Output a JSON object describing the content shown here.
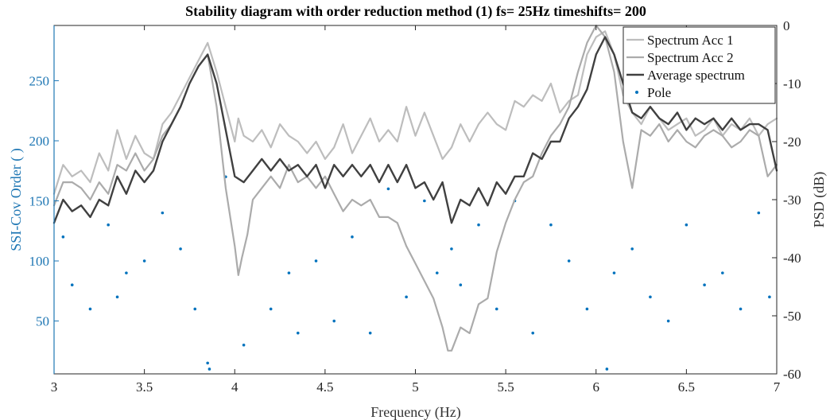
{
  "chart_data": {
    "type": "scatter",
    "title": "Stability diagram with order reduction method (1) fs= 25Hz timeshifts= 200",
    "xlabel": "Frequency (Hz)",
    "ylabel_left": "SSI-Cov Order ( )",
    "ylabel_right": "PSD (dB)",
    "xlim": [
      3,
      7
    ],
    "ylim_left": [
      6,
      296
    ],
    "ylim_right": [
      -60,
      0
    ],
    "x_ticks": [
      3,
      3.5,
      4,
      4.5,
      5,
      5.5,
      6,
      6.5,
      7
    ],
    "x_tick_labels": [
      "3",
      "3.5",
      "4",
      "4.5",
      "5",
      "5.5",
      "6",
      "6.5",
      "7"
    ],
    "y_left_ticks": [
      50,
      100,
      150,
      200,
      250
    ],
    "y_left_tick_labels": [
      "50",
      "100",
      "150",
      "200",
      "250"
    ],
    "y_right_ticks": [
      0,
      -10,
      -20,
      -30,
      -40,
      -50,
      -60
    ],
    "y_right_tick_labels": [
      "0",
      "-10",
      "-20",
      "-30",
      "-40",
      "-50",
      "-60"
    ],
    "grid": false,
    "legend_position": "top-right",
    "colors": {
      "pole": "#0072BD",
      "acc1": "#BDBDBD",
      "acc2": "#ABABAB",
      "average": "#404040",
      "left_axis": "#1f77b4",
      "right_axis": "#222222"
    },
    "series": [
      {
        "name": "Spectrum Acc 1",
        "axis": "right",
        "x": [
          3.0,
          3.05,
          3.1,
          3.15,
          3.2,
          3.25,
          3.3,
          3.35,
          3.4,
          3.45,
          3.5,
          3.55,
          3.6,
          3.65,
          3.7,
          3.75,
          3.8,
          3.85,
          3.9,
          3.95,
          4.0,
          4.02,
          4.05,
          4.1,
          4.15,
          4.2,
          4.25,
          4.3,
          4.35,
          4.4,
          4.45,
          4.5,
          4.55,
          4.6,
          4.65,
          4.7,
          4.75,
          4.8,
          4.85,
          4.9,
          4.95,
          5.0,
          5.05,
          5.1,
          5.15,
          5.2,
          5.25,
          5.3,
          5.35,
          5.4,
          5.45,
          5.5,
          5.55,
          5.6,
          5.65,
          5.7,
          5.75,
          5.8,
          5.85,
          5.9,
          5.95,
          6.0,
          6.05,
          6.1,
          6.15,
          6.2,
          6.25,
          6.3,
          6.35,
          6.4,
          6.45,
          6.5,
          6.55,
          6.6,
          6.65,
          6.7,
          6.75,
          6.8,
          6.85,
          6.9,
          6.95,
          7.0
        ],
        "y": [
          -29,
          -24,
          -26,
          -25,
          -27,
          -22,
          -25,
          -18,
          -23,
          -19,
          -22,
          -23,
          -17,
          -15,
          -12,
          -9,
          -6,
          -3,
          -8,
          -14,
          -20,
          -16,
          -19,
          -20,
          -18,
          -21,
          -17,
          -19,
          -20,
          -22,
          -20,
          -23,
          -21,
          -17,
          -22,
          -19,
          -16,
          -20,
          -18,
          -20,
          -14,
          -19,
          -15,
          -19,
          -23,
          -21,
          -17,
          -20,
          -17,
          -15,
          -17,
          -18,
          -13,
          -14,
          -12,
          -13,
          -10,
          -15,
          -13,
          -12,
          -5,
          -2,
          -1,
          -5,
          -12,
          -15,
          -17,
          -14,
          -16,
          -18,
          -17,
          -16,
          -19,
          -18,
          -16,
          -19,
          -17,
          -18,
          -16,
          -19,
          -17,
          -16
        ]
      },
      {
        "name": "Spectrum Acc 2",
        "axis": "right",
        "x": [
          3.0,
          3.05,
          3.1,
          3.15,
          3.2,
          3.25,
          3.3,
          3.35,
          3.4,
          3.45,
          3.5,
          3.55,
          3.6,
          3.65,
          3.7,
          3.75,
          3.8,
          3.85,
          3.9,
          3.95,
          4.0,
          4.02,
          4.04,
          4.07,
          4.1,
          4.15,
          4.2,
          4.25,
          4.3,
          4.35,
          4.4,
          4.45,
          4.5,
          4.55,
          4.6,
          4.65,
          4.7,
          4.75,
          4.8,
          4.85,
          4.9,
          4.95,
          5.0,
          5.05,
          5.1,
          5.15,
          5.18,
          5.2,
          5.25,
          5.3,
          5.35,
          5.4,
          5.45,
          5.5,
          5.55,
          5.6,
          5.65,
          5.7,
          5.75,
          5.8,
          5.85,
          5.9,
          5.95,
          6.0,
          6.05,
          6.1,
          6.15,
          6.2,
          6.25,
          6.3,
          6.35,
          6.4,
          6.45,
          6.5,
          6.55,
          6.6,
          6.65,
          6.7,
          6.75,
          6.8,
          6.85,
          6.9,
          6.95,
          7.0
        ],
        "y": [
          -31,
          -27,
          -27,
          -28,
          -30,
          -27,
          -29,
          -24,
          -25,
          -22,
          -25,
          -23,
          -19,
          -17,
          -14,
          -10,
          -7,
          -5,
          -14,
          -28,
          -38,
          -43,
          -40,
          -36,
          -30,
          -28,
          -26,
          -28,
          -24,
          -27,
          -26,
          -28,
          -26,
          -29,
          -32,
          -30,
          -31,
          -30,
          -33,
          -33,
          -34,
          -38,
          -41,
          -44,
          -47,
          -52,
          -56,
          -56,
          -52,
          -53,
          -48,
          -47,
          -39,
          -34,
          -30,
          -27,
          -26,
          -22,
          -19,
          -17,
          -14,
          -8,
          -3,
          0,
          -2,
          -8,
          -20,
          -28,
          -18,
          -19,
          -17,
          -20,
          -18,
          -20,
          -21,
          -19,
          -18,
          -19,
          -21,
          -20,
          -18,
          -19,
          -26,
          -24
        ]
      },
      {
        "name": "Average spectrum",
        "axis": "right",
        "x": [
          3.0,
          3.05,
          3.1,
          3.15,
          3.2,
          3.25,
          3.3,
          3.35,
          3.4,
          3.45,
          3.5,
          3.55,
          3.6,
          3.65,
          3.7,
          3.75,
          3.8,
          3.85,
          3.9,
          3.95,
          4.0,
          4.05,
          4.1,
          4.15,
          4.2,
          4.25,
          4.3,
          4.35,
          4.4,
          4.45,
          4.5,
          4.55,
          4.6,
          4.65,
          4.7,
          4.75,
          4.8,
          4.85,
          4.9,
          4.95,
          5.0,
          5.05,
          5.1,
          5.15,
          5.2,
          5.25,
          5.3,
          5.35,
          5.4,
          5.45,
          5.5,
          5.55,
          5.6,
          5.65,
          5.7,
          5.75,
          5.8,
          5.85,
          5.9,
          5.95,
          6.0,
          6.05,
          6.1,
          6.15,
          6.2,
          6.25,
          6.3,
          6.35,
          6.4,
          6.45,
          6.5,
          6.55,
          6.6,
          6.65,
          6.7,
          6.75,
          6.8,
          6.85,
          6.9,
          6.95,
          7.0
        ],
        "y": [
          -34,
          -30,
          -32,
          -31,
          -33,
          -30,
          -31,
          -26,
          -29,
          -25,
          -27,
          -25,
          -20,
          -17,
          -14,
          -10,
          -7,
          -5,
          -10,
          -18,
          -26,
          -27,
          -25,
          -23,
          -25,
          -23,
          -25,
          -24,
          -26,
          -24,
          -28,
          -24,
          -26,
          -24,
          -26,
          -24,
          -27,
          -24,
          -27,
          -24,
          -28,
          -27,
          -30,
          -27,
          -34,
          -30,
          -31,
          -28,
          -31,
          -27,
          -29,
          -26,
          -26,
          -22,
          -23,
          -20,
          -20,
          -16,
          -14,
          -11,
          -5,
          -2,
          -5,
          -10,
          -15,
          -16,
          -14,
          -16,
          -17,
          -15,
          -18,
          -16,
          -17,
          -16,
          -18,
          -16,
          -18,
          -17,
          -17,
          -18,
          -25
        ]
      },
      {
        "name": "Pole",
        "axis": "left",
        "marker": "dot",
        "x": [
          3.05,
          3.1,
          3.2,
          3.3,
          3.35,
          3.4,
          3.5,
          3.6,
          3.7,
          3.78,
          3.85,
          3.86,
          3.95,
          4.05,
          4.2,
          4.3,
          4.35,
          4.45,
          4.55,
          4.65,
          4.75,
          4.85,
          4.95,
          5.05,
          5.12,
          5.2,
          5.25,
          5.35,
          5.45,
          5.55,
          5.65,
          5.75,
          5.85,
          5.95,
          6.06,
          6.1,
          6.2,
          6.3,
          6.4,
          6.5,
          6.6,
          6.7,
          6.8,
          6.9,
          6.96
        ],
        "y": [
          120,
          80,
          60,
          130,
          70,
          90,
          100,
          140,
          110,
          60,
          15,
          10,
          170,
          30,
          60,
          90,
          40,
          100,
          50,
          120,
          40,
          160,
          70,
          150,
          90,
          110,
          80,
          130,
          60,
          150,
          40,
          130,
          100,
          60,
          10,
          90,
          110,
          70,
          50,
          130,
          80,
          90,
          60,
          140,
          70
        ]
      }
    ]
  }
}
